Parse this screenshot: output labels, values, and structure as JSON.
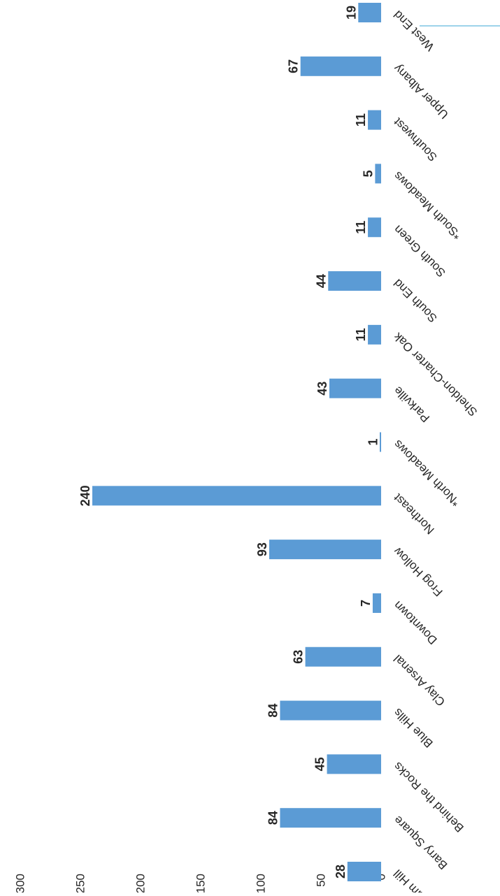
{
  "chart_data": {
    "type": "bar",
    "orientation": "rotated-90-clockwise",
    "categories": [
      "Asylum Hill",
      "Barry Square",
      "Behind the Rocks",
      "Blue Hills",
      "Clay Arsenal",
      "Downtown",
      "Frog Hollow",
      "Northeast",
      "*North Meadows",
      "Parkville",
      "Sheldon-Charter Oak",
      "South End",
      "South Green",
      "*South Meadows",
      "Southwest",
      "Upper Albany",
      "West End"
    ],
    "values": [
      28,
      84,
      45,
      84,
      63,
      7,
      93,
      240,
      1,
      43,
      11,
      44,
      11,
      5,
      11,
      67,
      19
    ],
    "data_labels": [
      "28",
      "84",
      "45",
      "84",
      "63",
      "7",
      "93",
      "240",
      "1",
      "43",
      "11",
      "44",
      "11",
      "5",
      "11",
      "67",
      "19"
    ],
    "y_ticks": [
      "0",
      "50",
      "100",
      "150",
      "200",
      "250",
      "300"
    ],
    "ylim": [
      0,
      300
    ],
    "title": "",
    "xlabel": "",
    "ylabel": "",
    "grid": false,
    "legend": "none",
    "bar_color": "#5b9bd5",
    "text_color": "#262626"
  }
}
